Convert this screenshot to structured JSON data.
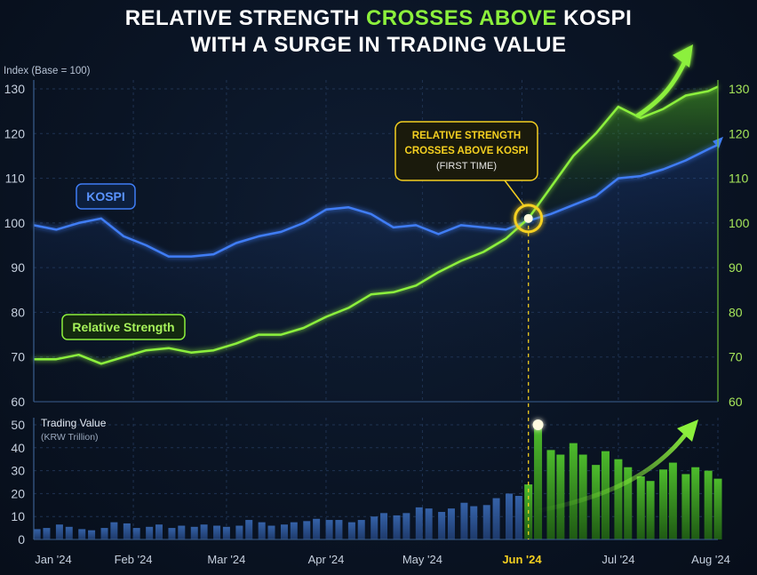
{
  "title": {
    "line1_a": "RELATIVE STRENGTH ",
    "line1_b": "CROSSES ABOVE",
    "line1_c": " KOSPI",
    "line2": "WITH A SURGE IN TRADING VALUE"
  },
  "colors": {
    "kospi": "#3f7df5",
    "relative_strength": "#8cf03c",
    "highlight": "#f5d020",
    "bars_before": "#2b4f8f",
    "bars_after": "#3f9a2a",
    "grid": "#1f3352",
    "background": "#0a1424"
  },
  "chart_data": [
    {
      "type": "line",
      "ylabel": "Index (Base = 100)",
      "ylim": [
        60,
        130
      ],
      "yticks": [
        "60",
        "70",
        "80",
        "90",
        "100",
        "110",
        "120",
        "130"
      ],
      "xlim": [
        "2024-01-01",
        "2024-08-01"
      ],
      "x_tick_labels": [
        "Jan '24",
        "Feb '24",
        "Mar '24",
        "Apr '24",
        "May '24",
        "Jun '24",
        "Jul '24",
        "Aug '24"
      ],
      "grid": true,
      "series": [
        {
          "name": "KOSPI",
          "points": [
            [
              "2024-01-01",
              99.5
            ],
            [
              "2024-01-08",
              98.5
            ],
            [
              "2024-01-15",
              100.0
            ],
            [
              "2024-01-22",
              101.0
            ],
            [
              "2024-01-29",
              97.0
            ],
            [
              "2024-02-05",
              95.0
            ],
            [
              "2024-02-12",
              92.5
            ],
            [
              "2024-02-19",
              92.5
            ],
            [
              "2024-02-26",
              93.0
            ],
            [
              "2024-03-04",
              95.5
            ],
            [
              "2024-03-11",
              97.0
            ],
            [
              "2024-03-18",
              98.0
            ],
            [
              "2024-03-25",
              100.0
            ],
            [
              "2024-04-01",
              103.0
            ],
            [
              "2024-04-08",
              103.5
            ],
            [
              "2024-04-15",
              102.0
            ],
            [
              "2024-04-22",
              99.0
            ],
            [
              "2024-04-29",
              99.5
            ],
            [
              "2024-05-06",
              97.5
            ],
            [
              "2024-05-13",
              99.5
            ],
            [
              "2024-05-20",
              99.0
            ],
            [
              "2024-05-27",
              98.5
            ],
            [
              "2024-06-03",
              100.5
            ],
            [
              "2024-06-10",
              102.0
            ],
            [
              "2024-06-17",
              104.0
            ],
            [
              "2024-06-24",
              106.0
            ],
            [
              "2024-07-01",
              110.0
            ],
            [
              "2024-07-08",
              110.5
            ],
            [
              "2024-07-15",
              112.0
            ],
            [
              "2024-07-22",
              114.0
            ],
            [
              "2024-07-29",
              116.5
            ],
            [
              "2024-08-01",
              117.5
            ]
          ]
        },
        {
          "name": "Relative Strength",
          "points": [
            [
              "2024-01-01",
              69.5
            ],
            [
              "2024-01-08",
              69.5
            ],
            [
              "2024-01-15",
              70.5
            ],
            [
              "2024-01-22",
              68.5
            ],
            [
              "2024-01-29",
              70.0
            ],
            [
              "2024-02-05",
              71.5
            ],
            [
              "2024-02-12",
              72.0
            ],
            [
              "2024-02-19",
              71.0
            ],
            [
              "2024-02-26",
              71.5
            ],
            [
              "2024-03-04",
              73.0
            ],
            [
              "2024-03-11",
              75.0
            ],
            [
              "2024-03-18",
              75.0
            ],
            [
              "2024-03-25",
              76.5
            ],
            [
              "2024-04-01",
              79.0
            ],
            [
              "2024-04-08",
              81.0
            ],
            [
              "2024-04-15",
              84.0
            ],
            [
              "2024-04-22",
              84.5
            ],
            [
              "2024-04-29",
              86.0
            ],
            [
              "2024-05-06",
              89.0
            ],
            [
              "2024-05-13",
              91.5
            ],
            [
              "2024-05-20",
              93.5
            ],
            [
              "2024-05-27",
              96.5
            ],
            [
              "2024-06-03",
              101.0
            ],
            [
              "2024-06-10",
              108.0
            ],
            [
              "2024-06-17",
              115.0
            ],
            [
              "2024-06-24",
              120.0
            ],
            [
              "2024-07-01",
              126.0
            ],
            [
              "2024-07-08",
              123.5
            ],
            [
              "2024-07-15",
              125.5
            ],
            [
              "2024-07-22",
              128.5
            ],
            [
              "2024-07-29",
              129.5
            ],
            [
              "2024-08-01",
              130.5
            ]
          ]
        }
      ],
      "legend": {
        "kospi_label": "KOSPI",
        "rs_label": "Relative Strength"
      },
      "annotations": {
        "cross_line1": "RELATIVE STRENGTH",
        "cross_line2": "CROSSES ABOVE KOSPI",
        "cross_line3": "(FIRST TIME)",
        "cross_date": "2024-06-03",
        "cross_value": 101.0
      }
    },
    {
      "type": "bar",
      "title": "Trading Value",
      "subtitle": "(KRW Trillion)",
      "ylim": [
        0,
        50
      ],
      "yticks": [
        "0",
        "10",
        "20",
        "30",
        "40",
        "50"
      ],
      "highlight_from": "2024-06-03",
      "values": [
        [
          "2024-01-02",
          4.5
        ],
        [
          "2024-01-05",
          5.0
        ],
        [
          "2024-01-09",
          6.5
        ],
        [
          "2024-01-12",
          5.5
        ],
        [
          "2024-01-16",
          4.5
        ],
        [
          "2024-01-19",
          4.0
        ],
        [
          "2024-01-23",
          5.0
        ],
        [
          "2024-01-26",
          7.5
        ],
        [
          "2024-01-30",
          7.0
        ],
        [
          "2024-02-02",
          5.0
        ],
        [
          "2024-02-06",
          5.5
        ],
        [
          "2024-02-09",
          6.5
        ],
        [
          "2024-02-13",
          5.0
        ],
        [
          "2024-02-16",
          6.0
        ],
        [
          "2024-02-20",
          5.5
        ],
        [
          "2024-02-23",
          6.5
        ],
        [
          "2024-02-27",
          6.0
        ],
        [
          "2024-03-01",
          5.5
        ],
        [
          "2024-03-05",
          6.0
        ],
        [
          "2024-03-08",
          8.5
        ],
        [
          "2024-03-12",
          7.5
        ],
        [
          "2024-03-15",
          6.0
        ],
        [
          "2024-03-19",
          6.5
        ],
        [
          "2024-03-22",
          7.5
        ],
        [
          "2024-03-26",
          8.0
        ],
        [
          "2024-03-29",
          9.0
        ],
        [
          "2024-04-02",
          8.5
        ],
        [
          "2024-04-05",
          8.5
        ],
        [
          "2024-04-09",
          7.5
        ],
        [
          "2024-04-12",
          8.5
        ],
        [
          "2024-04-16",
          10.0
        ],
        [
          "2024-04-19",
          11.5
        ],
        [
          "2024-04-23",
          10.5
        ],
        [
          "2024-04-26",
          11.5
        ],
        [
          "2024-04-30",
          14.0
        ],
        [
          "2024-05-03",
          13.5
        ],
        [
          "2024-05-07",
          12.0
        ],
        [
          "2024-05-10",
          13.5
        ],
        [
          "2024-05-14",
          16.0
        ],
        [
          "2024-05-17",
          14.5
        ],
        [
          "2024-05-21",
          15.0
        ],
        [
          "2024-05-24",
          18.0
        ],
        [
          "2024-05-28",
          20.0
        ],
        [
          "2024-05-31",
          19.0
        ],
        [
          "2024-06-03",
          24.0
        ],
        [
          "2024-06-06",
          50.0
        ],
        [
          "2024-06-10",
          39.0
        ],
        [
          "2024-06-13",
          37.0
        ],
        [
          "2024-06-17",
          42.0
        ],
        [
          "2024-06-20",
          37.0
        ],
        [
          "2024-06-24",
          32.5
        ],
        [
          "2024-06-27",
          38.5
        ],
        [
          "2024-07-01",
          35.0
        ],
        [
          "2024-07-04",
          31.5
        ],
        [
          "2024-07-08",
          27.5
        ],
        [
          "2024-07-11",
          25.5
        ],
        [
          "2024-07-15",
          30.5
        ],
        [
          "2024-07-18",
          33.5
        ],
        [
          "2024-07-22",
          28.5
        ],
        [
          "2024-07-25",
          31.5
        ],
        [
          "2024-07-29",
          30.0
        ],
        [
          "2024-08-01",
          26.5
        ]
      ]
    }
  ]
}
